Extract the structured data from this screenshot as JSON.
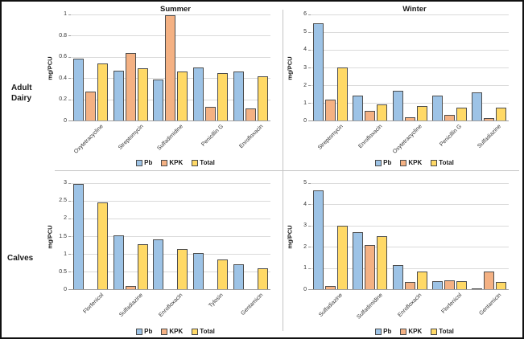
{
  "figure": {
    "row_labels": {
      "top": {
        "line1": "Adult",
        "line2": "Dairy"
      },
      "bottom": {
        "line1": "Calves",
        "line2": ""
      }
    }
  },
  "colors": {
    "pb": "#9DC3E6",
    "kpk": "#F4B183",
    "total": "#FFD966",
    "bar_border": "#4D4D4D",
    "gridline": "#DADADA",
    "axis": "#9E9E9E",
    "divider": "#C4C4C4"
  },
  "chart_data": [
    {
      "type": "bar",
      "title": "Summer",
      "row": "Adult Dairy",
      "ylabel": "mg/PCU",
      "ylim": [
        0,
        1
      ],
      "ytick_step": 0.2,
      "grid": true,
      "legend_position": "bottom",
      "categories": [
        "Oxytetracycline",
        "Streptomycin",
        "Sulfadimidine",
        "Penicillin G",
        "Enrofloxacin"
      ],
      "series": [
        {
          "name": "Pb",
          "color": "#9DC3E6",
          "values": [
            0.58,
            0.47,
            0.39,
            0.5,
            0.46
          ]
        },
        {
          "name": "KPK",
          "color": "#F4B183",
          "values": [
            0.27,
            0.64,
            0.99,
            0.13,
            0.11
          ]
        },
        {
          "name": "Total",
          "color": "#FFD966",
          "values": [
            0.54,
            0.49,
            0.46,
            0.45,
            0.42
          ]
        }
      ]
    },
    {
      "type": "bar",
      "title": "Winter",
      "row": "Adult Dairy",
      "ylabel": "mg/PCU",
      "ylim": [
        0,
        6
      ],
      "ytick_step": 1,
      "grid": true,
      "legend_position": "bottom",
      "categories": [
        "Streptomycin",
        "Enrofloxacin",
        "Oxytetracycline",
        "Penicillin G",
        "Sulfadiazine"
      ],
      "series": [
        {
          "name": "Pb",
          "color": "#9DC3E6",
          "values": [
            5.5,
            1.4,
            1.7,
            1.4,
            1.6
          ]
        },
        {
          "name": "KPK",
          "color": "#F4B183",
          "values": [
            1.2,
            0.55,
            0.2,
            0.3,
            0.15
          ]
        },
        {
          "name": "Total",
          "color": "#FFD966",
          "values": [
            3.0,
            0.9,
            0.8,
            0.75,
            0.75
          ]
        }
      ]
    },
    {
      "type": "bar",
      "title": "",
      "row": "Calves",
      "ylabel": "mg/PCU",
      "ylim": [
        0,
        3
      ],
      "ytick_step": 0.5,
      "grid": true,
      "legend_position": "bottom",
      "categories": [
        "Florfenicol",
        "Sulfadiazine",
        "Enrofloxacin",
        "Tylosin",
        "Gentamicin"
      ],
      "series": [
        {
          "name": "Pb",
          "color": "#9DC3E6",
          "values": [
            2.98,
            1.53,
            1.4,
            1.02,
            0.7
          ]
        },
        {
          "name": "KPK",
          "color": "#F4B183",
          "values": [
            0,
            0.08,
            0,
            0,
            0
          ]
        },
        {
          "name": "Total",
          "color": "#FFD966",
          "values": [
            2.45,
            1.28,
            1.13,
            0.84,
            0.59
          ]
        }
      ]
    },
    {
      "type": "bar",
      "title": "",
      "row": "Calves",
      "ylabel": "mg/PCU",
      "ylim": [
        0,
        5
      ],
      "ytick_step": 1,
      "grid": true,
      "legend_position": "bottom",
      "categories": [
        "Sulfadiazine",
        "Sulfadimidine",
        "Enrofloxacin",
        "Florfenicol",
        "Gentamicin"
      ],
      "series": [
        {
          "name": "Pb",
          "color": "#9DC3E6",
          "values": [
            4.65,
            2.7,
            1.15,
            0.37,
            0.05
          ]
        },
        {
          "name": "KPK",
          "color": "#F4B183",
          "values": [
            0.17,
            2.1,
            0.33,
            0.41,
            0.85
          ]
        },
        {
          "name": "Total",
          "color": "#FFD966",
          "values": [
            3.0,
            2.5,
            0.82,
            0.38,
            0.33
          ]
        }
      ]
    }
  ]
}
